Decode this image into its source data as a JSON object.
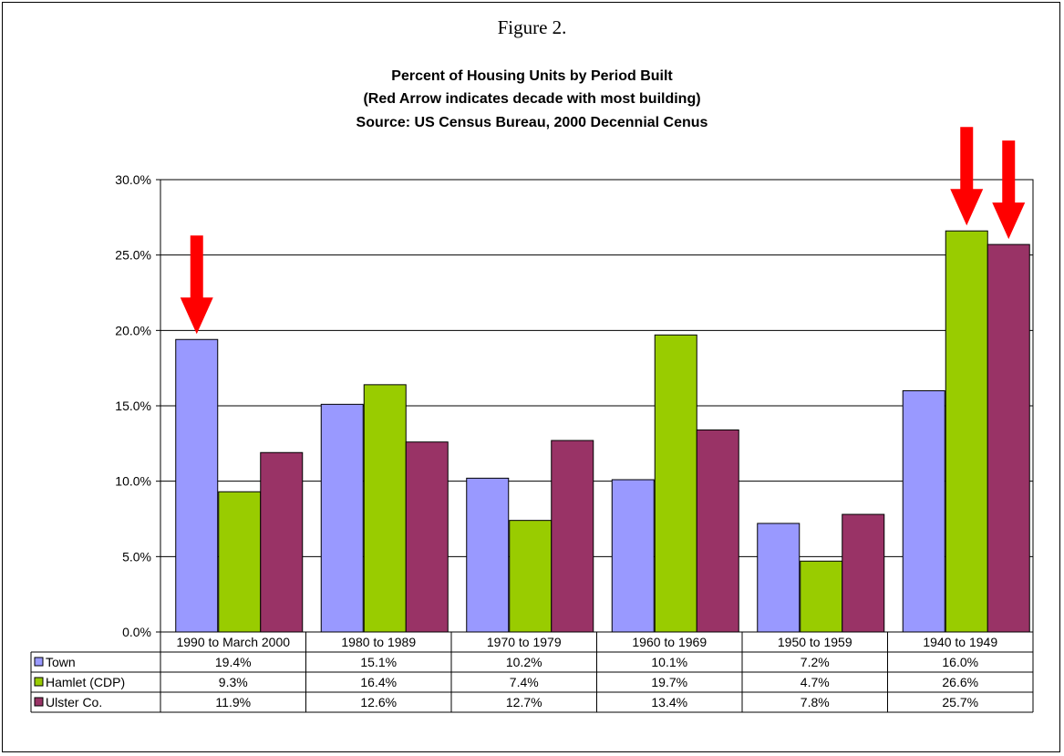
{
  "figure_label": "Figure 2.",
  "colors": {
    "town": "#9999ff",
    "hamlet": "#99cc00",
    "ulster": "#993366",
    "arrow": "#ff0000",
    "grid": "#000000"
  },
  "chart_data": {
    "type": "bar",
    "title": "Percent of Housing Units by Period Built",
    "subtitle": "(Red Arrow indicates decade with most building)",
    "source": "Source:  US Census Bureau, 2000 Decennial Cenus",
    "xlabel": "",
    "ylabel": "",
    "ylim": [
      0,
      30
    ],
    "yticks": [
      0,
      5,
      10,
      15,
      20,
      25,
      30
    ],
    "ytick_labels": [
      "0.0%",
      "5.0%",
      "10.0%",
      "15.0%",
      "20.0%",
      "25.0%",
      "30.0%"
    ],
    "grid": true,
    "legend": "data-table",
    "categories": [
      "1990 to March 2000",
      "1980 to 1989",
      "1970 to 1979",
      "1960 to 1969",
      "1950 to 1959",
      "1940 to 1949"
    ],
    "series": [
      {
        "name": "Town",
        "values": [
          19.4,
          15.1,
          10.2,
          10.1,
          7.2,
          16.0
        ],
        "labels": [
          "19.4%",
          "15.1%",
          "10.2%",
          "10.1%",
          "7.2%",
          "16.0%"
        ]
      },
      {
        "name": "Hamlet (CDP)",
        "values": [
          9.3,
          16.4,
          7.4,
          19.7,
          4.7,
          26.6
        ],
        "labels": [
          "9.3%",
          "16.4%",
          "7.4%",
          "19.7%",
          "4.7%",
          "26.6%"
        ]
      },
      {
        "name": "Ulster Co.",
        "values": [
          11.9,
          12.6,
          12.7,
          13.4,
          7.8,
          25.7
        ],
        "labels": [
          "11.9%",
          "12.6%",
          "12.7%",
          "13.4%",
          "7.8%",
          "25.7%"
        ]
      }
    ],
    "annotations": [
      {
        "type": "red-arrow",
        "category": 0,
        "series": 0
      },
      {
        "type": "red-arrow",
        "category": 5,
        "series": 1
      },
      {
        "type": "red-arrow",
        "category": 5,
        "series": 2
      }
    ]
  }
}
